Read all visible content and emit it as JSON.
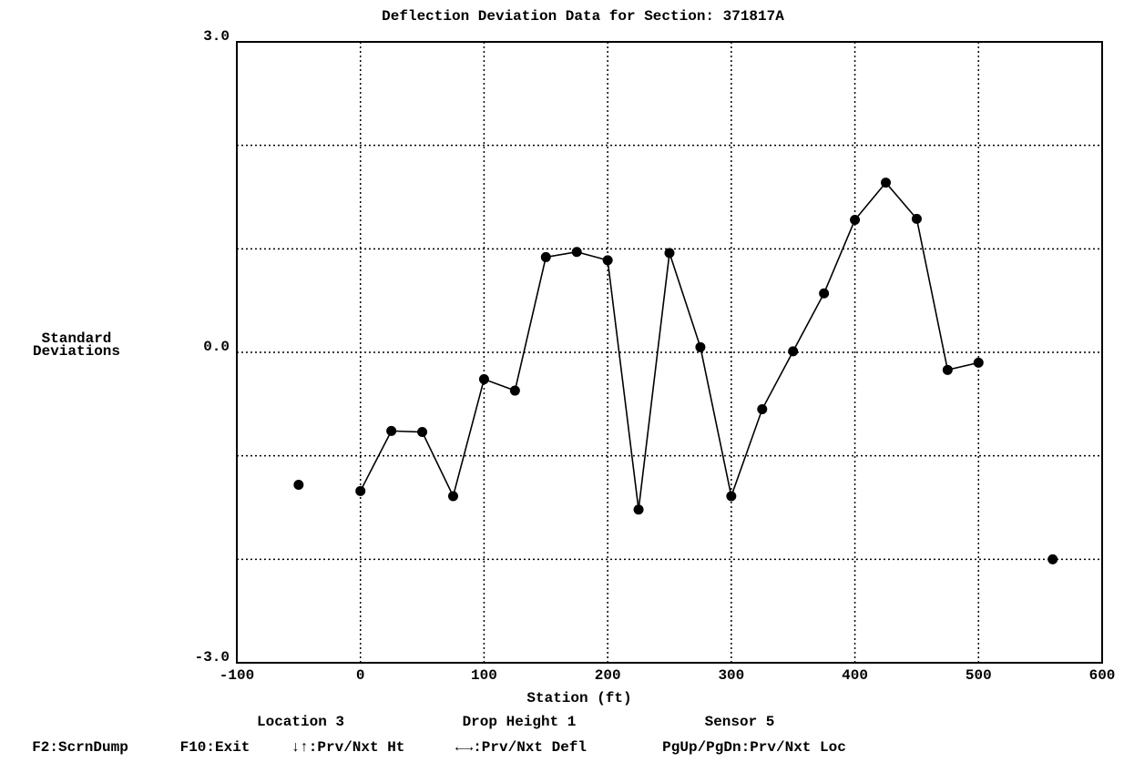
{
  "chart_data": {
    "type": "line",
    "title": "Deflection Deviation Data for Section: 371817A",
    "ylabel": [
      "Standard",
      "Deviations"
    ],
    "xlabel": "Station (ft)",
    "xlim": [
      -100,
      600
    ],
    "xticks": [
      -100,
      0,
      100,
      200,
      300,
      400,
      500,
      600
    ],
    "ylim": [
      -3,
      3
    ],
    "yticks": [
      {
        "value": -3,
        "label": "-3.0"
      },
      {
        "value": 0,
        "label": "0.0"
      },
      {
        "value": 3,
        "label": "3.0"
      }
    ],
    "ygrid": [
      -2,
      -1,
      1,
      2
    ],
    "grid": true,
    "series": [
      {
        "color": "#000000",
        "connected": true,
        "x": [
          0,
          25,
          50,
          75,
          100,
          125,
          150,
          175,
          200,
          225,
          250,
          275,
          300,
          325,
          350,
          375,
          400,
          425,
          450,
          475,
          500
        ],
        "values": [
          -1.34,
          -0.76,
          -0.77,
          -1.39,
          -0.26,
          -0.37,
          0.92,
          0.97,
          0.89,
          -1.52,
          0.96,
          0.05,
          -1.39,
          -0.55,
          0.01,
          0.57,
          1.28,
          1.64,
          1.29,
          -0.17,
          -0.1
        ]
      },
      {
        "color": "#000000",
        "connected": false,
        "x": [
          -50,
          560
        ],
        "values": [
          -1.28,
          -2.0
        ]
      }
    ]
  },
  "status": [
    "Location 3",
    "Drop Height 1",
    "Sensor 5"
  ],
  "keys": [
    "F2:ScrnDump",
    "F10:Exit",
    "↓↑:Prv/Nxt Ht",
    "←→:Prv/Nxt Defl",
    "PgUp/PgDn:Prv/Nxt Loc"
  ]
}
